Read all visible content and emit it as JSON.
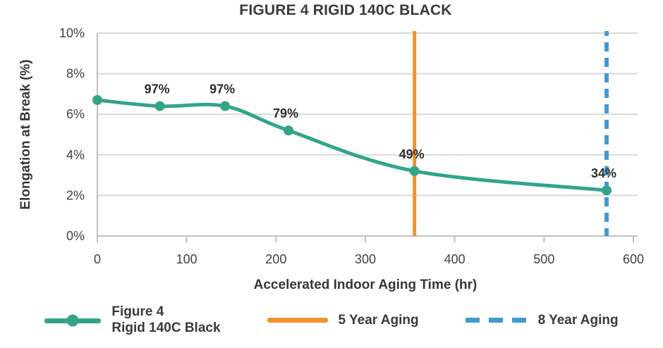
{
  "title": "FIGURE 4 RIGID 140C BLACK",
  "axes": {
    "x_label": "Accelerated Indoor Aging Time (hr)",
    "y_label": "Elongation at Break (%)",
    "x_ticks": [
      "0",
      "100",
      "200",
      "300",
      "400",
      "500",
      "600"
    ],
    "y_ticks": [
      "0%",
      "2%",
      "4%",
      "6%",
      "8%",
      "10%"
    ]
  },
  "legend": {
    "series_line1": "Figure 4",
    "series_line2": "Rigid 140C Black",
    "five_year": "5 Year Aging",
    "eight_year": "8 Year Aging"
  },
  "colors": {
    "series": "#32a48a",
    "five_year_line": "#f0932b",
    "eight_year_line": "#419bd2",
    "gridline": "#d9d9d9",
    "axis_line": "#bfbfbf",
    "text_dark": "#3a3a3a"
  },
  "chart_data": {
    "type": "line",
    "title": "FIGURE 4 RIGID 140C BLACK",
    "xlabel": "Accelerated Indoor Aging Time (hr)",
    "ylabel": "Elongation at Break (%)",
    "xlim": [
      0,
      600
    ],
    "ylim": [
      0,
      10
    ],
    "x_tick_step": 100,
    "y_tick_step": 2,
    "y_tick_format": "percent",
    "grid": "horizontal-only",
    "legend_position": "bottom",
    "series": [
      {
        "name": "Figure 4 Rigid 140C Black",
        "color": "#32a48a",
        "marker": "circle",
        "smoothed": true,
        "x": [
          0,
          70,
          143,
          214,
          355,
          570
        ],
        "y": [
          6.7,
          6.4,
          6.4,
          5.2,
          3.2,
          2.25
        ],
        "point_labels": [
          "",
          "97%",
          "97%",
          "79%",
          "49%",
          "34%"
        ]
      }
    ],
    "vlines": [
      {
        "name": "5 Year Aging",
        "x": 355,
        "color": "#f0932b",
        "style": "solid"
      },
      {
        "name": "8 Year Aging",
        "x": 570,
        "color": "#419bd2",
        "style": "dashed"
      }
    ]
  }
}
